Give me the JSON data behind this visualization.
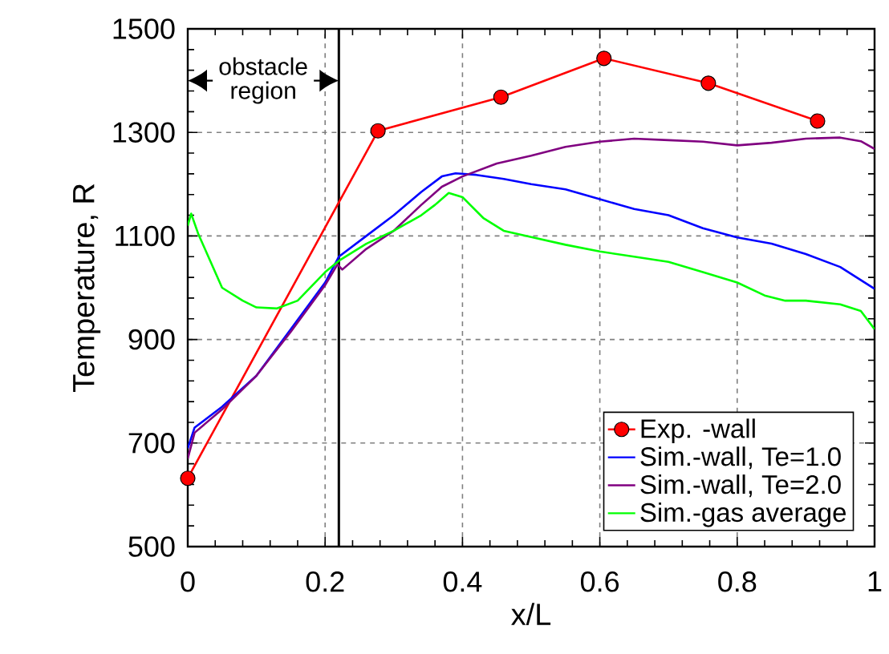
{
  "chart_data": {
    "type": "line",
    "xlabel": "x/L",
    "ylabel": "Temperature, R",
    "xlim": [
      0,
      1
    ],
    "ylim": [
      500,
      1500
    ],
    "xticks": [
      0,
      0.2,
      0.4,
      0.6,
      0.8,
      1
    ],
    "yticks": [
      500,
      700,
      900,
      1100,
      1300,
      1500
    ],
    "grid": true,
    "legend": "bottom right",
    "line_style": "solid",
    "annotations": [
      "obstacle region"
    ],
    "ref_lines": [
      {
        "axis": "x",
        "value": 0.22,
        "color": "#000000"
      }
    ],
    "series": [
      {
        "name": "Exp. -wall",
        "color": "#ff0000",
        "marker": "circle",
        "x": [
          0,
          0.277,
          0.456,
          0.606,
          0.758,
          0.917
        ],
        "values": [
          632,
          1303,
          1368,
          1443,
          1395,
          1322
        ]
      },
      {
        "name": "Sim.-wall, Te=1.0",
        "color": "#0000ff",
        "marker": "none",
        "x": [
          0,
          0.01,
          0.05,
          0.1,
          0.15,
          0.2,
          0.22,
          0.26,
          0.3,
          0.34,
          0.37,
          0.39,
          0.42,
          0.46,
          0.5,
          0.55,
          0.6,
          0.65,
          0.7,
          0.75,
          0.8,
          0.85,
          0.9,
          0.95,
          1.0
        ],
        "values": [
          690,
          730,
          770,
          830,
          920,
          1010,
          1060,
          1100,
          1140,
          1185,
          1215,
          1221,
          1218,
          1210,
          1200,
          1190,
          1171,
          1152,
          1140,
          1115,
          1097,
          1085,
          1065,
          1040,
          998
        ]
      },
      {
        "name": "Sim.-wall, Te=2.0",
        "color": "#800080",
        "marker": "none",
        "x": [
          0,
          0.01,
          0.05,
          0.1,
          0.15,
          0.2,
          0.218,
          0.225,
          0.26,
          0.3,
          0.34,
          0.37,
          0.4,
          0.45,
          0.5,
          0.55,
          0.6,
          0.65,
          0.7,
          0.75,
          0.8,
          0.85,
          0.9,
          0.95,
          0.98,
          1.0
        ],
        "values": [
          670,
          720,
          765,
          830,
          915,
          1005,
          1045,
          1035,
          1075,
          1110,
          1160,
          1195,
          1215,
          1240,
          1255,
          1272,
          1282,
          1288,
          1285,
          1282,
          1275,
          1280,
          1288,
          1290,
          1283,
          1268
        ]
      },
      {
        "name": "Sim.-gas average",
        "color": "#00ff00",
        "marker": "none",
        "x": [
          0,
          0.005,
          0.015,
          0.03,
          0.05,
          0.08,
          0.1,
          0.13,
          0.16,
          0.2,
          0.22,
          0.26,
          0.3,
          0.34,
          0.36,
          0.38,
          0.4,
          0.43,
          0.46,
          0.5,
          0.55,
          0.6,
          0.65,
          0.7,
          0.75,
          0.8,
          0.84,
          0.87,
          0.9,
          0.95,
          0.98,
          1.0
        ],
        "values": [
          1120,
          1143,
          1105,
          1060,
          1000,
          975,
          962,
          960,
          975,
          1030,
          1052,
          1085,
          1110,
          1140,
          1160,
          1183,
          1175,
          1135,
          1110,
          1098,
          1083,
          1070,
          1060,
          1050,
          1030,
          1010,
          985,
          975,
          975,
          968,
          955,
          920
        ]
      }
    ]
  }
}
